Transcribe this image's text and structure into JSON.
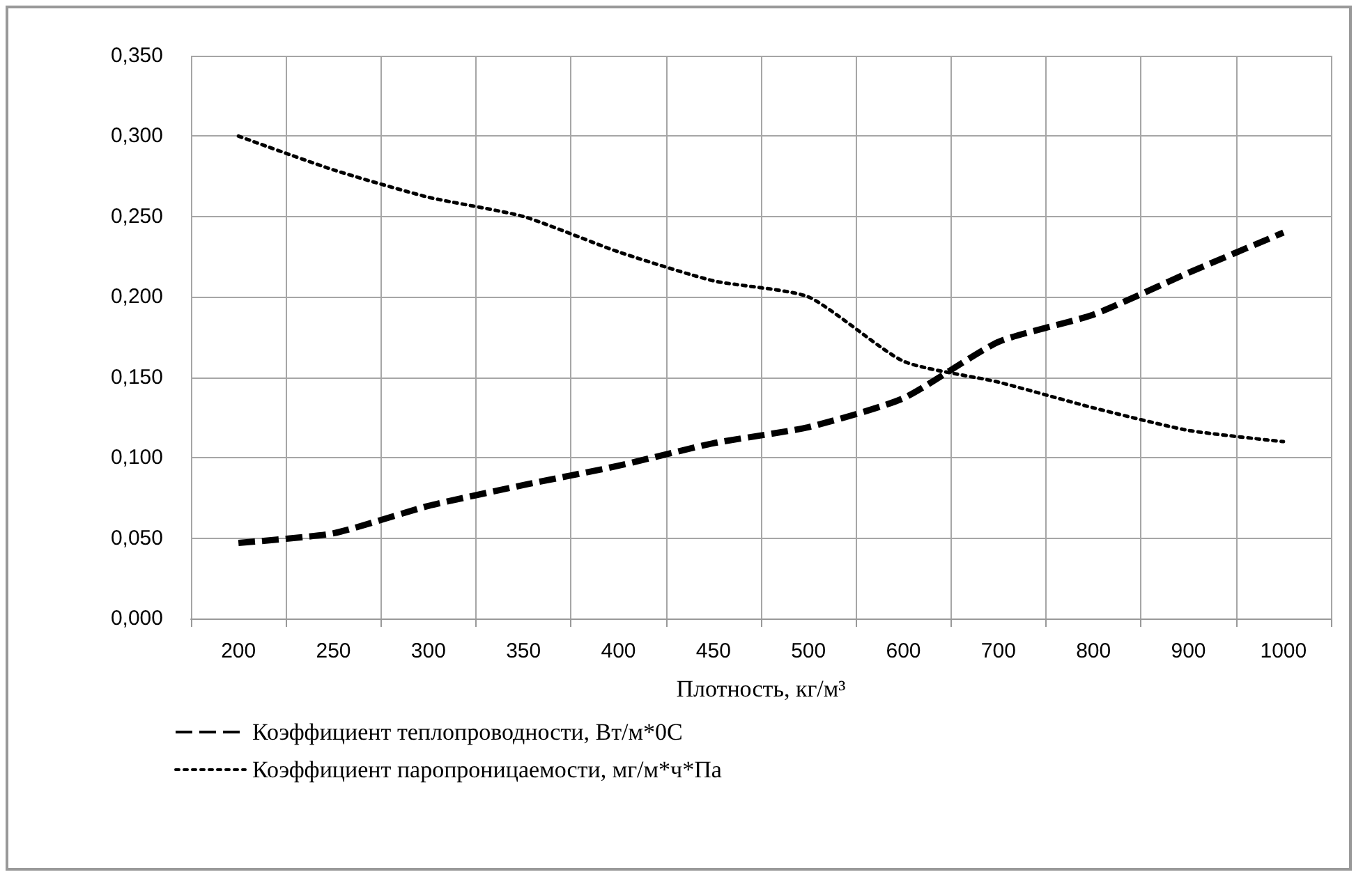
{
  "chart_data": {
    "type": "line",
    "xlabel": "Плотность, кг/м³",
    "categories": [
      "200",
      "250",
      "300",
      "350",
      "400",
      "450",
      "500",
      "600",
      "700",
      "800",
      "900",
      "1000"
    ],
    "series": [
      {
        "name": "Коэффициент теплопроводности, Вт/м*0С",
        "color": "#000000",
        "line_style": "dashed",
        "values": [
          0.047,
          0.053,
          0.07,
          0.083,
          0.095,
          0.109,
          0.119,
          0.137,
          0.172,
          0.189,
          0.215,
          0.24
        ]
      },
      {
        "name": "Коэффициент паропроницаемости, мг/м*ч*Па",
        "color": "#000000",
        "line_style": "dotted",
        "values": [
          0.3,
          0.279,
          0.262,
          0.25,
          0.228,
          0.21,
          0.2,
          0.16,
          0.147,
          0.131,
          0.117,
          0.11
        ]
      }
    ],
    "ylim": [
      0,
      0.35
    ],
    "yticks": [
      {
        "value": 0,
        "label": "0,000"
      },
      {
        "value": 0.05,
        "label": "0,050"
      },
      {
        "value": 0.1,
        "label": "0,100"
      },
      {
        "value": 0.15,
        "label": "0,150"
      },
      {
        "value": 0.2,
        "label": "0,200"
      },
      {
        "value": 0.25,
        "label": "0,250"
      },
      {
        "value": 0.3,
        "label": "0,300"
      },
      {
        "value": 0.35,
        "label": "0,350"
      }
    ],
    "grid": true,
    "legend": "bottom",
    "marker": "none"
  }
}
